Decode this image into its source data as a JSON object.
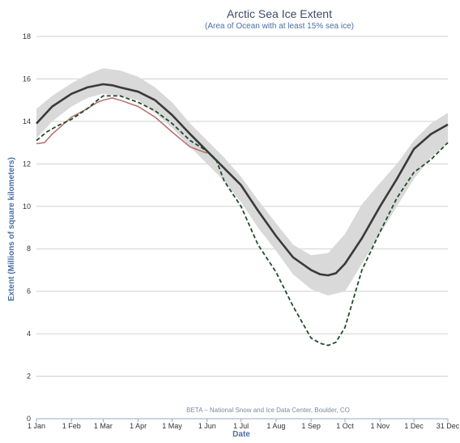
{
  "chart_data": {
    "type": "line",
    "title": "Arctic Sea Ice Extent",
    "subtitle": "(Area of Ocean with at least 15% sea ice)",
    "xlabel": "Date",
    "ylabel": "Extent (Millions of square kilometers)",
    "credit": "BETA – National Snow and Ice Data Center, Boulder, CO",
    "x_unit": "day of year",
    "xlim": [
      1,
      365
    ],
    "ylim": [
      0,
      18
    ],
    "y_ticks": [
      0,
      2,
      4,
      6,
      8,
      10,
      12,
      14,
      16,
      18
    ],
    "x_ticks": [
      {
        "label": "1 Jan",
        "day": 1
      },
      {
        "label": "1 Feb",
        "day": 32
      },
      {
        "label": "1 Mar",
        "day": 60
      },
      {
        "label": "1 Apr",
        "day": 91
      },
      {
        "label": "1 May",
        "day": 121
      },
      {
        "label": "1 Jun",
        "day": 152
      },
      {
        "label": "1 Jul",
        "day": 182
      },
      {
        "label": "1 Aug",
        "day": 213
      },
      {
        "label": "1 Sep",
        "day": 244
      },
      {
        "label": "1 Oct",
        "day": 274
      },
      {
        "label": "1 Nov",
        "day": 305
      },
      {
        "label": "1 Dec",
        "day": 335
      },
      {
        "label": "31 Dec",
        "day": 365
      }
    ],
    "grid": true,
    "series": [
      {
        "style": "band",
        "color": "#d9d9d9",
        "x": [
          1,
          15,
          32,
          46,
          60,
          75,
          91,
          106,
          121,
          137,
          152,
          167,
          182,
          197,
          213,
          228,
          244,
          259,
          274,
          289,
          305,
          320,
          335,
          350,
          365
        ],
        "upper": [
          14.6,
          15.2,
          15.8,
          16.2,
          16.5,
          16.4,
          16.1,
          15.6,
          14.9,
          13.9,
          13.1,
          12.3,
          11.4,
          10.3,
          9.2,
          8.2,
          7.7,
          7.8,
          8.7,
          10.1,
          11.1,
          12.0,
          13.1,
          13.9,
          14.4
        ],
        "lower": [
          13.2,
          14.0,
          14.7,
          15.1,
          15.3,
          15.2,
          15.0,
          14.4,
          13.7,
          12.8,
          12.0,
          11.2,
          10.2,
          9.0,
          7.9,
          6.8,
          6.1,
          5.8,
          6.0,
          7.3,
          8.7,
          10.0,
          11.3,
          12.3,
          13.0
        ]
      },
      {
        "style": "solid",
        "color": "#3a3a3a",
        "x": [
          1,
          15,
          32,
          46,
          60,
          68,
          75,
          91,
          106,
          121,
          137,
          152,
          167,
          182,
          197,
          213,
          228,
          244,
          252,
          259,
          266,
          274,
          289,
          305,
          320,
          335,
          350,
          365
        ],
        "values": [
          13.9,
          14.7,
          15.3,
          15.6,
          15.75,
          15.7,
          15.6,
          15.4,
          15.0,
          14.3,
          13.4,
          12.6,
          11.8,
          11.0,
          9.8,
          8.6,
          7.6,
          7.0,
          6.8,
          6.75,
          6.85,
          7.3,
          8.5,
          10.0,
          11.3,
          12.7,
          13.4,
          13.85
        ]
      },
      {
        "style": "dashed",
        "color": "#1e4d2b",
        "x": [
          1,
          10,
          20,
          32,
          46,
          55,
          60,
          68,
          75,
          91,
          106,
          121,
          137,
          152,
          160,
          167,
          182,
          197,
          213,
          228,
          244,
          252,
          259,
          266,
          274,
          289,
          305,
          320,
          335,
          350,
          365
        ],
        "values": [
          13.1,
          13.5,
          13.8,
          14.1,
          14.6,
          15.0,
          15.2,
          15.2,
          15.2,
          14.9,
          14.5,
          13.9,
          13.1,
          12.6,
          12.2,
          11.2,
          10.0,
          8.2,
          6.9,
          5.3,
          3.8,
          3.55,
          3.45,
          3.6,
          4.3,
          7.0,
          8.8,
          10.4,
          11.6,
          12.2,
          13.0
        ]
      },
      {
        "style": "thin",
        "color": "#b56c6c",
        "x": [
          1,
          8,
          15,
          32,
          46,
          55,
          60,
          68,
          75,
          91,
          106,
          121,
          137,
          152
        ],
        "values": [
          12.95,
          13.0,
          13.4,
          14.2,
          14.6,
          14.9,
          15.0,
          15.1,
          15.0,
          14.7,
          14.2,
          13.5,
          12.8,
          12.5
        ]
      }
    ]
  }
}
